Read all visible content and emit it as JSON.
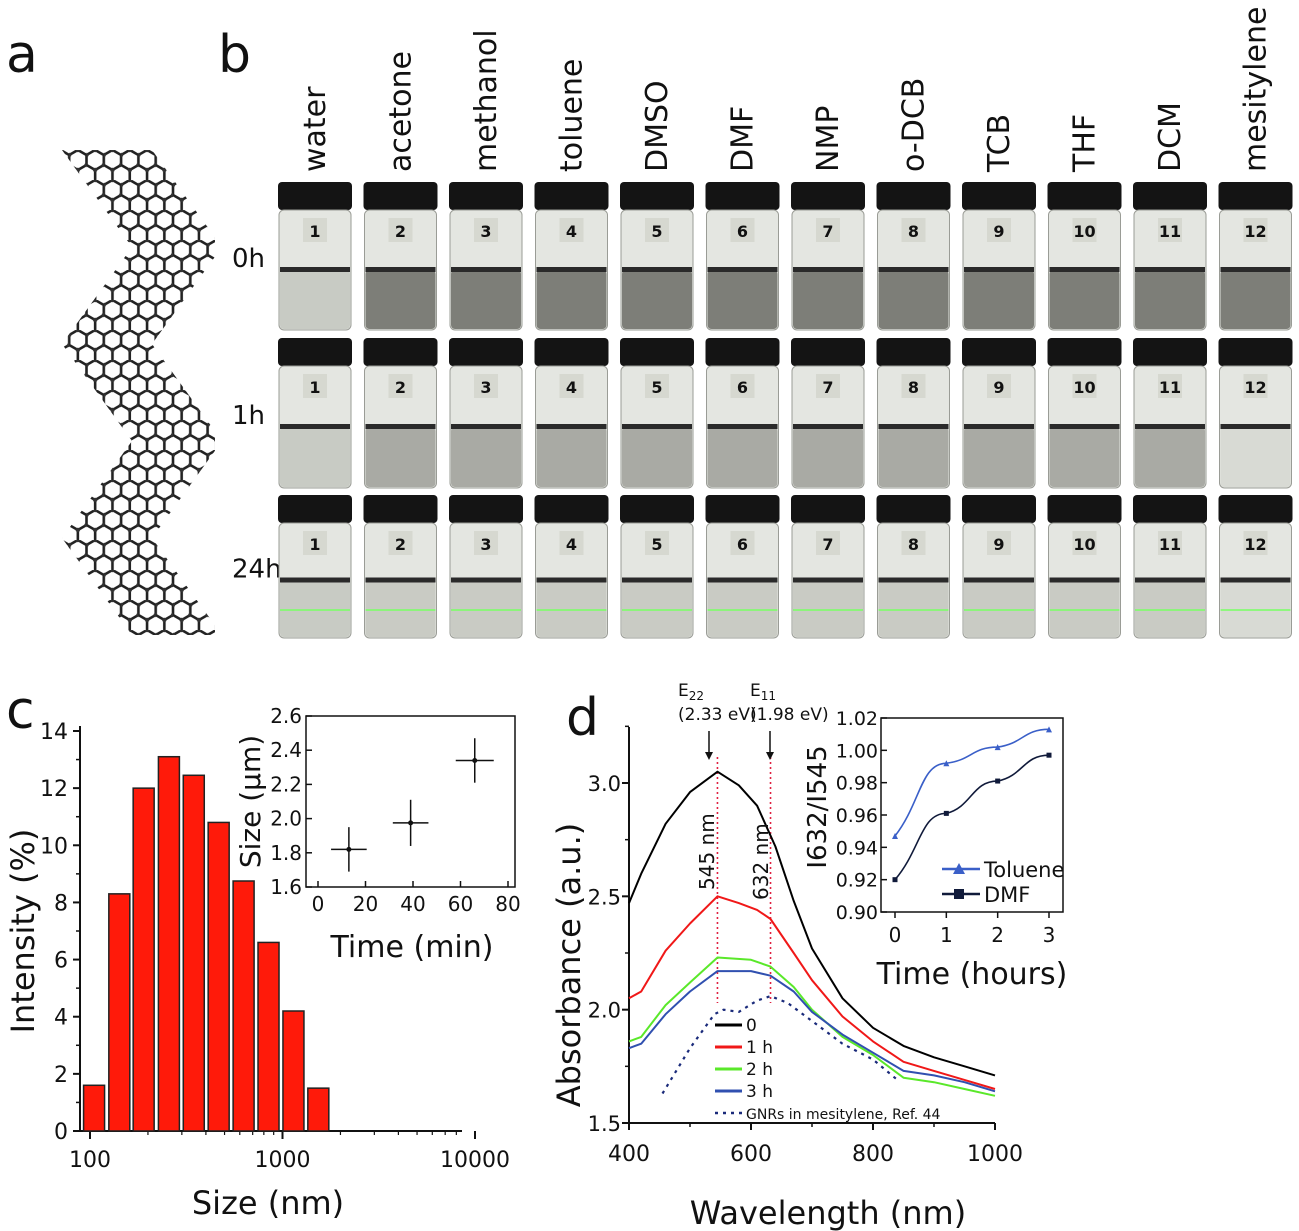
{
  "panel_labels": {
    "a": "a",
    "b": "b",
    "c": "c",
    "d": "d"
  },
  "panel_b": {
    "solvents": [
      "water",
      "acetone",
      "methanol",
      "toluene",
      "DMSO",
      "DMF",
      "NMP",
      "o-DCB",
      "TCB",
      "THF",
      "DCM",
      "mesitylene"
    ],
    "vial_numbers": [
      "1",
      "2",
      "3",
      "4",
      "5",
      "6",
      "7",
      "8",
      "9",
      "10",
      "11",
      "12"
    ],
    "rows": [
      "0h",
      "1h",
      "24h"
    ],
    "colors": {
      "cap": "#141414",
      "liquid_0h": "#7d7e78",
      "liquid_1h": "#a9aaa4",
      "liquid_24h": "#c9cbc4",
      "laser": "#7dff6a"
    }
  },
  "chart_data": [
    {
      "type": "bar",
      "panel": "c",
      "xlabel": "Size (nm)",
      "ylabel": "Intensity (%)",
      "x_scale": "log",
      "xlim": [
        85,
        20000
      ],
      "ylim": [
        0,
        14
      ],
      "x_ticks": [
        "100",
        "1000",
        "10000"
      ],
      "y_ticks": [
        "0",
        "2",
        "4",
        "6",
        "8",
        "10",
        "12",
        "14"
      ],
      "categories": [
        105,
        142,
        190,
        257,
        346,
        466,
        628,
        846,
        1140,
        1535
      ],
      "values": [
        1.6,
        8.3,
        12.0,
        13.1,
        12.45,
        10.8,
        8.75,
        6.6,
        4.2,
        1.5
      ],
      "bar_color": "#ff1a0a"
    },
    {
      "type": "scatter",
      "panel": "c-inset",
      "xlabel": "Time (min)",
      "ylabel": "Size (µm)",
      "xlim": [
        -5,
        80
      ],
      "ylim": [
        1.6,
        2.6
      ],
      "x_ticks": [
        "0",
        "20",
        "40",
        "60",
        "80"
      ],
      "y_ticks": [
        "1.6",
        "1.8",
        "2.0",
        "2.2",
        "2.4",
        "2.6"
      ],
      "points": [
        {
          "x": 13,
          "y": 1.82,
          "xerr": 7.5,
          "yerr": 0.13
        },
        {
          "x": 39,
          "y": 1.975,
          "xerr": 7.5,
          "yerr": 0.135
        },
        {
          "x": 66,
          "y": 2.34,
          "xerr": 8,
          "yerr": 0.13
        }
      ]
    },
    {
      "type": "line",
      "panel": "d",
      "xlabel": "Wavelength (nm)",
      "ylabel": "Absorbance (a.u.)",
      "xlim": [
        400,
        1000
      ],
      "ylim": [
        1.5,
        3.25
      ],
      "x_ticks": [
        "400",
        "600",
        "800",
        "1000"
      ],
      "y_ticks": [
        "1.5",
        "2.0",
        "2.5",
        "3.0"
      ],
      "annotations": {
        "e22": {
          "label": "E",
          "sub": "22",
          "value": "(2.33 eV)",
          "x": 545
        },
        "e11": {
          "label": "E",
          "sub": "11",
          "value": "(1.98 eV)",
          "x": 632
        },
        "line545": "545 nm",
        "line632": "632 nm"
      },
      "legend_position": "bottom-center",
      "series": [
        {
          "name": "0",
          "color": "#000000",
          "style": "solid",
          "x": [
            400,
            420,
            460,
            500,
            545,
            580,
            610,
            640,
            670,
            700,
            750,
            800,
            850,
            900,
            950,
            1000
          ],
          "y": [
            2.47,
            2.6,
            2.82,
            2.96,
            3.05,
            2.99,
            2.9,
            2.72,
            2.48,
            2.27,
            2.05,
            1.92,
            1.84,
            1.79,
            1.75,
            1.71
          ]
        },
        {
          "name": "1 h",
          "color": "#f01818",
          "style": "solid",
          "x": [
            400,
            420,
            460,
            500,
            545,
            580,
            610,
            632,
            670,
            700,
            750,
            800,
            850,
            900,
            950,
            1000
          ],
          "y": [
            2.05,
            2.08,
            2.26,
            2.38,
            2.5,
            2.47,
            2.44,
            2.4,
            2.25,
            2.13,
            1.97,
            1.86,
            1.77,
            1.73,
            1.69,
            1.65
          ]
        },
        {
          "name": "2 h",
          "color": "#5ae82a",
          "style": "solid",
          "x": [
            400,
            420,
            460,
            500,
            545,
            600,
            632,
            670,
            700,
            750,
            800,
            850,
            900,
            950,
            1000
          ],
          "y": [
            1.86,
            1.88,
            2.02,
            2.12,
            2.23,
            2.22,
            2.19,
            2.1,
            2.0,
            1.88,
            1.8,
            1.7,
            1.68,
            1.65,
            1.62
          ]
        },
        {
          "name": "3 h",
          "color": "#3050b0",
          "style": "solid",
          "x": [
            400,
            420,
            460,
            500,
            545,
            600,
            632,
            670,
            700,
            750,
            800,
            850,
            900,
            950,
            1000
          ],
          "y": [
            1.83,
            1.85,
            1.98,
            2.08,
            2.17,
            2.17,
            2.15,
            2.08,
            1.99,
            1.89,
            1.81,
            1.73,
            1.71,
            1.68,
            1.64
          ]
        },
        {
          "name": "GNRs in mesitylene, Ref. 44",
          "color": "#1a2a7a",
          "style": "dotted",
          "x": [
            455,
            500,
            540,
            555,
            580,
            610,
            632,
            660,
            700,
            750,
            800,
            840
          ],
          "y": [
            1.63,
            1.83,
            1.98,
            2.0,
            1.99,
            2.04,
            2.06,
            2.03,
            1.95,
            1.85,
            1.78,
            1.69
          ]
        }
      ]
    },
    {
      "type": "line",
      "panel": "d-inset",
      "xlabel": "Time (hours)",
      "ylabel": "I632/I545",
      "ylabel_parts": {
        "main": "I",
        "sub1": "632",
        "sep": "/I",
        "sub2": "545"
      },
      "xlim": [
        -0.2,
        3.35
      ],
      "ylim": [
        0.9,
        1.02
      ],
      "x_ticks": [
        "0",
        "1",
        "2",
        "3"
      ],
      "y_ticks": [
        "0.90",
        "0.92",
        "0.94",
        "0.96",
        "0.98",
        "1.00",
        "1.02"
      ],
      "legend_position": "bottom-right",
      "series": [
        {
          "name": "Toluene",
          "color": "#3a5fc8",
          "marker": "triangle",
          "x": [
            0,
            1,
            2,
            3
          ],
          "y": [
            0.947,
            0.992,
            1.002,
            1.013
          ]
        },
        {
          "name": "DMF",
          "color": "#101a3a",
          "marker": "square",
          "x": [
            0,
            1,
            2,
            3
          ],
          "y": [
            0.92,
            0.961,
            0.981,
            0.997
          ]
        }
      ]
    }
  ]
}
